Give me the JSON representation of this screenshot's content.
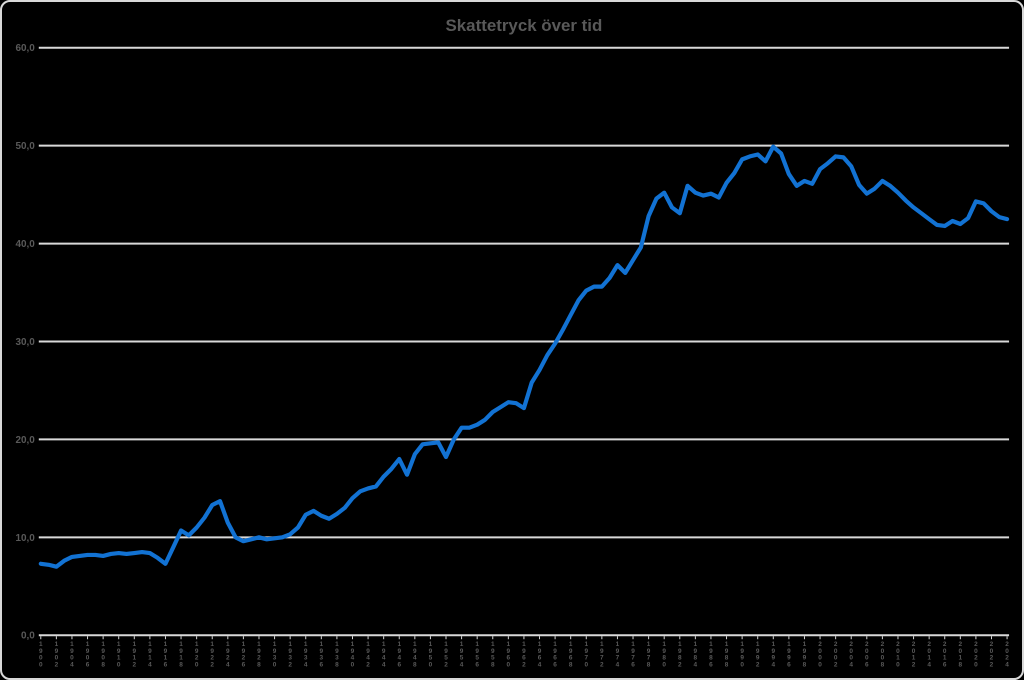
{
  "window": {
    "background_color": "#000000",
    "border_color": "#d9d9d9"
  },
  "chart": {
    "title_color": "#595959",
    "label_color": "#595959",
    "gridline_color": "#d9d9d9",
    "line_color": "#1272d3"
  },
  "chart_data": {
    "type": "line",
    "title": "Skattetryck över tid",
    "xlabel": "",
    "ylabel": "",
    "ylim": [
      0,
      60
    ],
    "grid": "horizontal",
    "legend": "none",
    "number_format": "decimal-comma (sv-SE)",
    "y_ticks": [
      {
        "value": 0,
        "label": "0,0"
      },
      {
        "value": 10,
        "label": "10,0"
      },
      {
        "value": 20,
        "label": "20,0"
      },
      {
        "value": 30,
        "label": "30,0"
      },
      {
        "value": 40,
        "label": "40,0"
      },
      {
        "value": 50,
        "label": "50,0"
      },
      {
        "value": 60,
        "label": "60,0"
      }
    ],
    "x_tick_label_step": 2,
    "x": [
      1900,
      1901,
      1902,
      1903,
      1904,
      1905,
      1906,
      1907,
      1908,
      1909,
      1910,
      1911,
      1912,
      1913,
      1914,
      1915,
      1916,
      1917,
      1918,
      1919,
      1920,
      1921,
      1922,
      1923,
      1924,
      1925,
      1926,
      1927,
      1928,
      1929,
      1930,
      1931,
      1932,
      1933,
      1934,
      1935,
      1936,
      1937,
      1938,
      1939,
      1940,
      1941,
      1942,
      1943,
      1944,
      1945,
      1946,
      1947,
      1948,
      1949,
      1950,
      1951,
      1952,
      1953,
      1954,
      1955,
      1956,
      1957,
      1958,
      1959,
      1960,
      1961,
      1962,
      1963,
      1964,
      1965,
      1966,
      1967,
      1968,
      1969,
      1970,
      1971,
      1972,
      1973,
      1974,
      1975,
      1976,
      1977,
      1978,
      1979,
      1980,
      1981,
      1982,
      1983,
      1984,
      1985,
      1986,
      1987,
      1988,
      1989,
      1990,
      1991,
      1992,
      1993,
      1994,
      1995,
      1996,
      1997,
      1998,
      1999,
      2000,
      2001,
      2002,
      2003,
      2004,
      2005,
      2006,
      2007,
      2008,
      2009,
      2010,
      2011,
      2012,
      2013,
      2014,
      2015,
      2016,
      2017,
      2018,
      2019,
      2020,
      2021,
      2022,
      2023,
      2024
    ],
    "values": [
      7.3,
      7.2,
      7.0,
      7.6,
      8.0,
      8.1,
      8.2,
      8.2,
      8.1,
      8.3,
      8.4,
      8.3,
      8.4,
      8.5,
      8.4,
      7.9,
      7.3,
      9.0,
      10.7,
      10.2,
      11.0,
      12.0,
      13.3,
      13.7,
      11.5,
      10.0,
      9.6,
      9.8,
      10.0,
      9.8,
      9.9,
      10.0,
      10.3,
      11.0,
      12.3,
      12.7,
      12.2,
      11.9,
      12.4,
      13.0,
      14.0,
      14.7,
      15.0,
      15.2,
      16.2,
      17.0,
      18.0,
      16.4,
      18.5,
      19.5,
      19.6,
      19.7,
      18.2,
      20.0,
      21.2,
      21.2,
      21.5,
      22.0,
      22.8,
      23.3,
      23.8,
      23.7,
      23.2,
      25.8,
      27.1,
      28.6,
      29.8,
      31.2,
      32.7,
      34.2,
      35.2,
      35.6,
      35.6,
      36.5,
      37.8,
      37.0,
      38.3,
      39.6,
      42.8,
      44.6,
      45.2,
      43.7,
      43.1,
      45.9,
      45.2,
      44.9,
      45.1,
      44.7,
      46.2,
      47.2,
      48.6,
      48.9,
      49.1,
      48.4,
      49.9,
      49.2,
      47.1,
      45.9,
      46.4,
      46.1,
      47.6,
      48.2,
      48.9,
      48.8,
      47.9,
      46.0,
      45.1,
      45.6,
      46.4,
      45.9,
      45.2,
      44.4,
      43.7,
      43.1,
      42.5,
      41.9,
      41.8,
      42.3,
      42.0,
      42.6,
      44.3,
      44.1,
      43.3,
      42.7,
      42.5
    ]
  }
}
